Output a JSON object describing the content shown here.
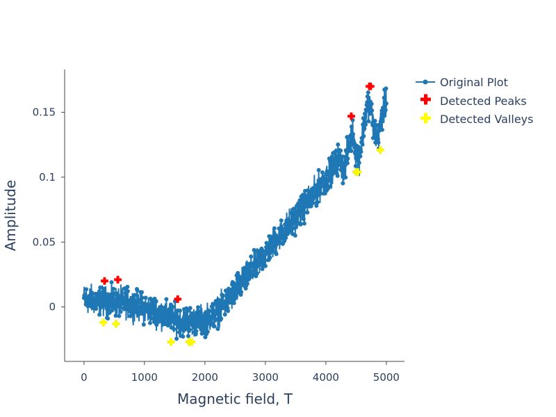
{
  "chart_data": {
    "type": "scatter",
    "title": "",
    "xlabel": "Magnetic field, T",
    "ylabel": "Amplitude",
    "xlim": [
      -320,
      5300
    ],
    "ylim": [
      -0.042,
      0.183
    ],
    "x_ticks": [
      0,
      1000,
      2000,
      3000,
      4000,
      5000
    ],
    "x_tick_labels": [
      "0",
      "1000",
      "2000",
      "3000",
      "4000",
      "5000"
    ],
    "y_ticks": [
      0,
      0.05,
      0.1,
      0.15
    ],
    "y_tick_labels": [
      "0",
      "0.05",
      "0.1",
      "0.15"
    ],
    "grid": false,
    "legend_position": "top-right",
    "series": [
      {
        "name": "Original Plot",
        "mode": "lines+markers",
        "color": "#1f77b4",
        "trend_x": [
          0,
          200,
          400,
          600,
          800,
          1000,
          1200,
          1400,
          1600,
          1800,
          2000,
          2200,
          2400,
          2600,
          2800,
          3000,
          3200,
          3400,
          3600,
          3800,
          4000,
          4100,
          4200,
          4300,
          4400,
          4450,
          4500,
          4550,
          4600,
          4650,
          4700,
          4750,
          4800,
          4850,
          4900,
          4950,
          5000
        ],
        "trend_y": [
          0.006,
          0.005,
          0.004,
          0.004,
          0.002,
          -0.001,
          -0.004,
          -0.008,
          -0.011,
          -0.011,
          -0.01,
          -0.004,
          0.006,
          0.018,
          0.029,
          0.041,
          0.053,
          0.064,
          0.075,
          0.087,
          0.099,
          0.106,
          0.114,
          0.106,
          0.128,
          0.133,
          0.118,
          0.114,
          0.13,
          0.145,
          0.158,
          0.152,
          0.136,
          0.128,
          0.14,
          0.152,
          0.156
        ],
        "noise_amplitude": 0.008,
        "x_range": [
          0,
          5000
        ]
      },
      {
        "name": "Detected Peaks",
        "mode": "markers",
        "marker": "cross",
        "color": "#ff0000",
        "x": [
          340,
          560,
          1550,
          4420,
          4720,
          4740
        ],
        "y": [
          0.02,
          0.021,
          0.006,
          0.147,
          0.17,
          0.17
        ]
      },
      {
        "name": "Detected Valleys",
        "mode": "markers",
        "marker": "cross",
        "color": "#ffff00",
        "x": [
          320,
          530,
          1440,
          1740,
          1780,
          4500,
          4530,
          4900
        ],
        "y": [
          -0.012,
          -0.013,
          -0.027,
          -0.027,
          -0.027,
          0.104,
          0.104,
          0.121
        ]
      }
    ]
  }
}
